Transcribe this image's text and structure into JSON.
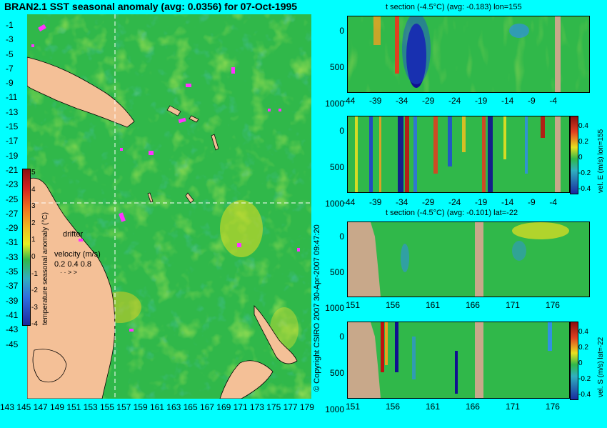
{
  "main_title": "BRAN2.1 SST seasonal anomaly (avg: 0.0356) for 07-Oct-1995",
  "map": {
    "lat_ticks": [
      "-1",
      "-3",
      "-5",
      "-7",
      "-9",
      "-11",
      "-13",
      "-15",
      "-17",
      "-19",
      "-21",
      "-23",
      "-25",
      "-27",
      "-29",
      "-31",
      "-33",
      "-35",
      "-37",
      "-39",
      "-41",
      "-43",
      "-45"
    ],
    "lon_ticks": [
      "143",
      "145",
      "147",
      "149",
      "151",
      "153",
      "155",
      "157",
      "159",
      "161",
      "163",
      "165",
      "167",
      "169",
      "171",
      "173",
      "175",
      "177",
      "179"
    ],
    "colorbar_label": "temperature seasonal anomaly (°C)",
    "colorbar_ticks": [
      "5",
      "4",
      "3",
      "2",
      "1",
      "0",
      "-1",
      "-2",
      "-3",
      "-4"
    ],
    "drifter_label": "drifter",
    "velocity_label": "velocity (m/s)",
    "velocity_scale": "0.2 0.4 0.8",
    "copyright": "© Copyright CSIRO 2007   30-Apr-2007 09:47:20"
  },
  "panels": [
    {
      "title": "t section (-4.5°C) (avg: -0.183) lon=155",
      "xticks": [
        "-44",
        "-39",
        "-34",
        "-29",
        "-24",
        "-19",
        "-14",
        "-9",
        "-4"
      ],
      "yticks": [
        "0",
        "500",
        "1000"
      ]
    },
    {
      "title": "",
      "xticks": [
        "-44",
        "-39",
        "-34",
        "-29",
        "-24",
        "-19",
        "-14",
        "-9",
        "-4"
      ],
      "yticks": [
        "0",
        "500",
        "1000"
      ],
      "cbar_label": "vel. E (m/s) lon=155",
      "cbar_ticks": [
        "0.4",
        "0.2",
        "0",
        "-0.2",
        "-0.4"
      ]
    },
    {
      "title": "t section (-4.5°C) (avg: -0.101) lat=-22",
      "xticks": [
        "151",
        "156",
        "161",
        "166",
        "171",
        "176"
      ],
      "yticks": [
        "0",
        "500",
        "1000"
      ]
    },
    {
      "title": "",
      "xticks": [
        "151",
        "156",
        "161",
        "166",
        "171",
        "176"
      ],
      "yticks": [
        "0",
        "500",
        "1000"
      ],
      "cbar_label": "vel. S (m/s) lat=-22",
      "cbar_ticks": [
        "0.4",
        "0.2",
        "0",
        "-0.2",
        "-0.4"
      ]
    }
  ],
  "colors": {
    "background": "#00ffff",
    "ocean": "#30b84a",
    "land": "#f4c097",
    "section_land": "#c8a88a",
    "drifter": "#ff33ff"
  }
}
